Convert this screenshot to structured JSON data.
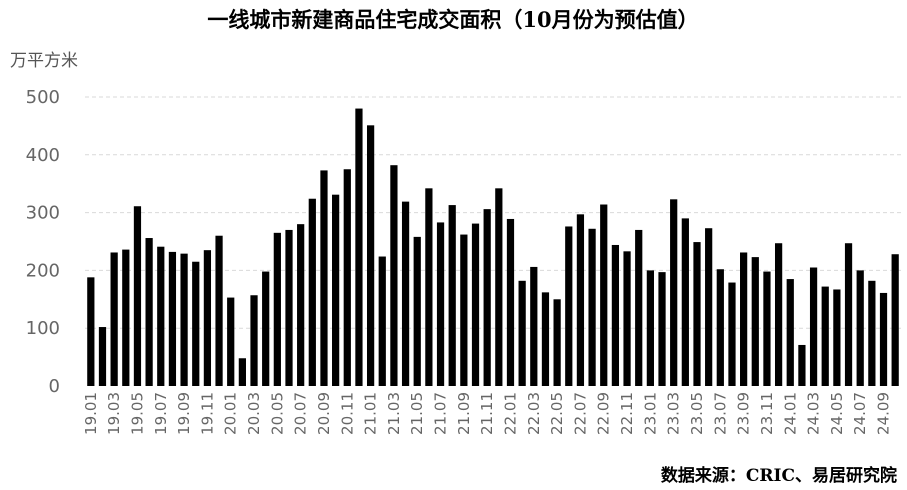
{
  "chart_data": {
    "type": "bar",
    "title": "一线城市新建商品住宅成交面积（10月份为预估值）",
    "ylabel": "万平方米",
    "xlabel": "",
    "ylim": [
      0,
      500
    ],
    "yticks": [
      0,
      100,
      200,
      300,
      400,
      500
    ],
    "grid": true,
    "bar_color": "#000000",
    "grid_color": "#d9d9d9",
    "source": "数据来源：CRIC、易居研究院",
    "categories": [
      "19.01",
      "19.02",
      "19.03",
      "19.04",
      "19.05",
      "19.06",
      "19.07",
      "19.08",
      "19.09",
      "19.10",
      "19.11",
      "19.12",
      "20.01",
      "20.02",
      "20.03",
      "20.04",
      "20.05",
      "20.06",
      "20.07",
      "20.08",
      "20.09",
      "20.10",
      "20.11",
      "20.12",
      "21.01",
      "21.02",
      "21.03",
      "21.04",
      "21.05",
      "21.06",
      "21.07",
      "21.08",
      "21.09",
      "21.10",
      "21.11",
      "21.12",
      "22.01",
      "22.02",
      "22.03",
      "22.04",
      "22.05",
      "22.06",
      "22.07",
      "22.08",
      "22.09",
      "22.10",
      "22.11",
      "22.12",
      "23.01",
      "23.02",
      "23.03",
      "23.04",
      "23.05",
      "23.06",
      "23.07",
      "23.08",
      "23.09",
      "23.10",
      "23.11",
      "23.12",
      "24.01",
      "24.02",
      "24.03",
      "24.04",
      "24.05",
      "24.06",
      "24.07",
      "24.08",
      "24.09",
      "24.10"
    ],
    "values": [
      188,
      102,
      231,
      236,
      311,
      256,
      241,
      232,
      229,
      215,
      235,
      260,
      153,
      48,
      157,
      198,
      265,
      270,
      280,
      324,
      373,
      331,
      375,
      480,
      451,
      224,
      382,
      319,
      258,
      342,
      283,
      313,
      262,
      281,
      306,
      342,
      289,
      182,
      206,
      162,
      150,
      276,
      297,
      272,
      314,
      244,
      233,
      270,
      200,
      197,
      323,
      290,
      249,
      273,
      202,
      179,
      231,
      223,
      198,
      247,
      185,
      71,
      205,
      172,
      167,
      247,
      200,
      182,
      161,
      228
    ],
    "visible_tick_labels": [
      "19.01",
      "19.03",
      "19.05",
      "19.07",
      "19.09",
      "19.11",
      "20.01",
      "20.03",
      "20.05",
      "20.07",
      "20.09",
      "20.11",
      "21.01",
      "21.03",
      "21.05",
      "21.07",
      "21.09",
      "21.11",
      "22.01",
      "22.03",
      "22.05",
      "22.07",
      "22.09",
      "22.11",
      "23.01",
      "23.03",
      "23.05",
      "23.07",
      "23.09",
      "23.11",
      "24.01",
      "24.03",
      "24.05",
      "24.07",
      "24.09"
    ]
  }
}
